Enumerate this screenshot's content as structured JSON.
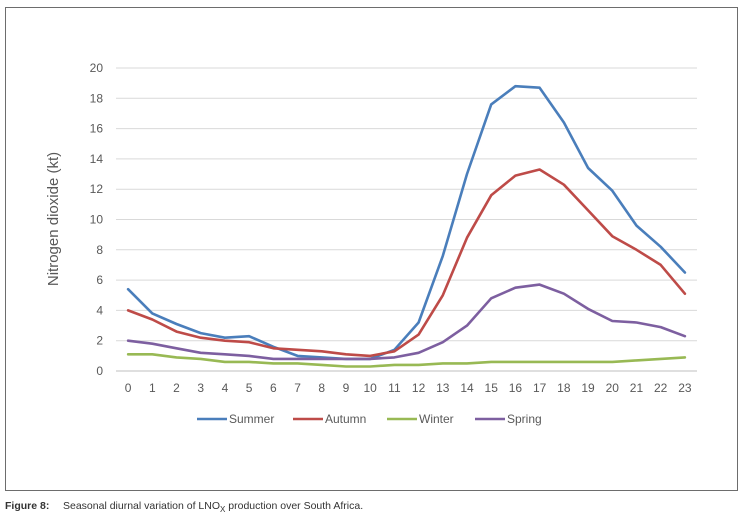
{
  "chart_data": {
    "type": "line",
    "ylabel": "Nitrogen dioxide (kt)",
    "xlabel": "",
    "ylim": [
      0,
      20
    ],
    "yticks": [
      0,
      2,
      4,
      6,
      8,
      10,
      12,
      14,
      16,
      18,
      20
    ],
    "x": [
      "0",
      "1",
      "2",
      "3",
      "4",
      "5",
      "6",
      "7",
      "8",
      "9",
      "10",
      "11",
      "12",
      "13",
      "14",
      "15",
      "16",
      "17",
      "18",
      "19",
      "20",
      "21",
      "22",
      "23"
    ],
    "grid": true,
    "legend": "bottom",
    "series": [
      {
        "name": "Summer",
        "color": "#4a7ebb",
        "values": [
          5.4,
          3.8,
          3.1,
          2.5,
          2.2,
          2.3,
          1.6,
          1.0,
          0.9,
          0.8,
          0.8,
          1.4,
          3.2,
          7.6,
          13.0,
          17.6,
          18.8,
          18.7,
          16.4,
          13.4,
          11.9,
          9.6,
          8.2,
          6.5
        ]
      },
      {
        "name": "Autumn",
        "color": "#be4b48",
        "values": [
          4.0,
          3.4,
          2.6,
          2.2,
          2.0,
          1.9,
          1.5,
          1.4,
          1.3,
          1.1,
          1.0,
          1.3,
          2.4,
          5.0,
          8.8,
          11.6,
          12.9,
          13.3,
          12.3,
          10.6,
          8.9,
          8.0,
          7.0,
          5.1
        ]
      },
      {
        "name": "Winter",
        "color": "#98b954",
        "values": [
          1.1,
          1.1,
          0.9,
          0.8,
          0.6,
          0.6,
          0.5,
          0.5,
          0.4,
          0.3,
          0.3,
          0.4,
          0.4,
          0.5,
          0.5,
          0.6,
          0.6,
          0.6,
          0.6,
          0.6,
          0.6,
          0.7,
          0.8,
          0.9
        ]
      },
      {
        "name": "Spring",
        "color": "#7d5fa0",
        "values": [
          2.0,
          1.8,
          1.5,
          1.2,
          1.1,
          1.0,
          0.8,
          0.8,
          0.8,
          0.8,
          0.8,
          0.9,
          1.2,
          1.9,
          3.0,
          4.8,
          5.5,
          5.7,
          5.1,
          4.1,
          3.3,
          3.2,
          2.9,
          2.3
        ]
      }
    ]
  },
  "caption": {
    "label": "Figure 8:",
    "text_before": "Seasonal diurnal variation of LNO",
    "subscript": "X",
    "text_after": " production over South Africa."
  }
}
